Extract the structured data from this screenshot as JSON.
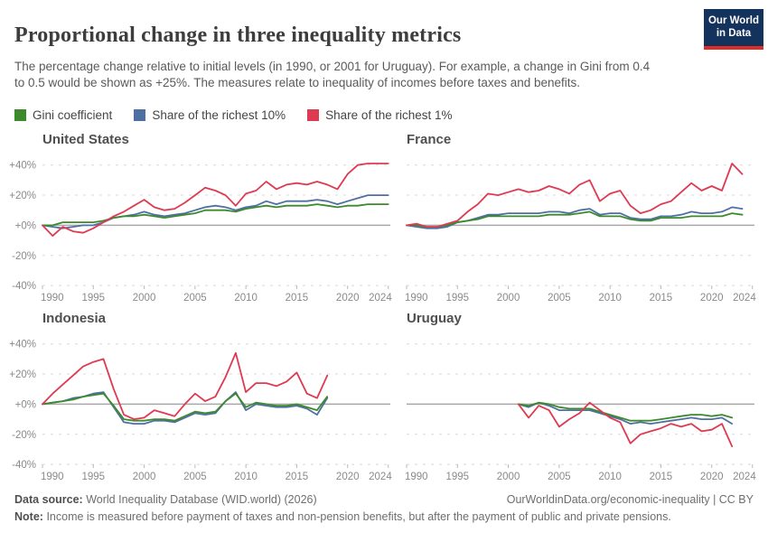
{
  "header": {
    "title": "Proportional change in three inequality metrics",
    "subtitle": "The percentage change relative to initial levels (in 1990, or 2001 for Uruguay). For example, a change in Gini from 0.4 to 0.5 would be shown as +25%. The measures relate to inequality of incomes before taxes and benefits.",
    "logo": {
      "line1": "Our World",
      "line2": "in Data",
      "bg_color": "#13325c",
      "bar_color": "#de2d26"
    }
  },
  "legend": [
    {
      "label": "Gini coefficient",
      "color": "#3C8A2C"
    },
    {
      "label": "Share of the richest 10%",
      "color": "#4E6FA3"
    },
    {
      "label": "Share of the richest 1%",
      "color": "#DE3A52"
    }
  ],
  "axis": {
    "y_tick_labels": [
      "+40%",
      "+20%",
      "+0%",
      "-20%",
      "-40%"
    ],
    "y_tick_values": [
      40,
      20,
      0,
      -20,
      -40
    ],
    "x_tick_years": [
      1990,
      1995,
      2000,
      2005,
      2010,
      2015,
      2020,
      2024
    ],
    "x_range": [
      1990,
      2024
    ],
    "y_range": [
      -40,
      40
    ],
    "grid": "dashed horizontal gridlines, solid zero line"
  },
  "chart_data": [
    {
      "type": "line",
      "title": "United States",
      "start_year": 1990,
      "end_year": 2024,
      "series": [
        {
          "name": "Gini coefficient",
          "values": [
            0,
            0,
            2,
            2,
            2,
            2,
            3,
            5,
            6,
            6,
            7,
            6,
            5,
            6,
            7,
            8,
            10,
            10,
            10,
            9,
            11,
            12,
            13,
            12,
            13,
            13,
            13,
            14,
            13,
            12,
            13,
            13,
            14,
            14,
            14
          ]
        },
        {
          "name": "Share of the richest 10%",
          "values": [
            0,
            -1,
            -2,
            -1,
            0,
            0,
            2,
            5,
            6,
            7,
            9,
            7,
            6,
            7,
            8,
            10,
            12,
            13,
            12,
            10,
            12,
            13,
            16,
            14,
            16,
            16,
            16,
            17,
            16,
            14,
            16,
            18,
            20,
            20,
            20
          ]
        },
        {
          "name": "Share of the richest 1%",
          "values": [
            0,
            -7,
            -1,
            -4,
            -5,
            -2,
            2,
            6,
            9,
            13,
            17,
            12,
            10,
            11,
            15,
            20,
            25,
            23,
            20,
            13,
            21,
            23,
            29,
            24,
            27,
            28,
            27,
            29,
            27,
            24,
            34,
            40,
            41,
            41,
            41
          ]
        }
      ]
    },
    {
      "type": "line",
      "title": "France",
      "start_year": 1990,
      "end_year": 2023,
      "series": [
        {
          "name": "Gini coefficient",
          "values": [
            0,
            0,
            -1,
            -1,
            0,
            2,
            3,
            4,
            6,
            6,
            6,
            6,
            6,
            6,
            7,
            7,
            7,
            8,
            9,
            6,
            6,
            6,
            4,
            3,
            3,
            5,
            5,
            5,
            6,
            6,
            6,
            6,
            8,
            7
          ]
        },
        {
          "name": "Share of the richest 10%",
          "values": [
            0,
            -1,
            -2,
            -2,
            -1,
            2,
            3,
            5,
            7,
            7,
            8,
            8,
            8,
            8,
            9,
            9,
            8,
            10,
            11,
            7,
            8,
            8,
            5,
            4,
            4,
            6,
            6,
            7,
            9,
            8,
            8,
            9,
            12,
            11
          ]
        },
        {
          "name": "Share of the richest 1%",
          "values": [
            0,
            1,
            -1,
            -1,
            1,
            3,
            9,
            14,
            21,
            20,
            22,
            24,
            22,
            23,
            26,
            24,
            21,
            27,
            30,
            16,
            21,
            23,
            13,
            8,
            10,
            14,
            16,
            22,
            28,
            23,
            26,
            23,
            41,
            34
          ]
        }
      ]
    },
    {
      "type": "line",
      "title": "Indonesia",
      "start_year": 1990,
      "end_year": 2018,
      "series": [
        {
          "name": "Gini coefficient",
          "values": [
            0,
            1,
            2,
            3,
            5,
            6,
            7,
            -1,
            -10,
            -11,
            -11,
            -10,
            -10,
            -11,
            -8,
            -5,
            -6,
            -5,
            2,
            7,
            -2,
            1,
            0,
            -1,
            -1,
            0,
            -2,
            -4,
            5
          ]
        },
        {
          "name": "Share of the richest 10%",
          "values": [
            0,
            1,
            2,
            4,
            5,
            7,
            8,
            -2,
            -12,
            -13,
            -13,
            -11,
            -11,
            -12,
            -9,
            -6,
            -7,
            -6,
            2,
            8,
            -4,
            0,
            -1,
            -2,
            -2,
            -1,
            -3,
            -7,
            4
          ]
        },
        {
          "name": "Share of the richest 1%",
          "values": [
            0,
            7,
            13,
            19,
            25,
            28,
            30,
            10,
            -7,
            -10,
            -9,
            -4,
            -6,
            -8,
            0,
            7,
            2,
            5,
            18,
            34,
            8,
            14,
            14,
            12,
            15,
            21,
            7,
            4,
            19
          ]
        }
      ]
    },
    {
      "type": "line",
      "title": "Uruguay",
      "start_year": 2001,
      "end_year": 2022,
      "series": [
        {
          "name": "Gini coefficient",
          "values": [
            0,
            -1,
            1,
            0,
            -2,
            -3,
            -3,
            -3,
            -5,
            -7,
            -9,
            -11,
            -11,
            -11,
            -10,
            -9,
            -8,
            -7,
            -7,
            -8,
            -7,
            -9
          ]
        },
        {
          "name": "Share of the richest 10%",
          "values": [
            0,
            -2,
            1,
            -1,
            -4,
            -4,
            -4,
            -4,
            -6,
            -8,
            -10,
            -13,
            -12,
            -13,
            -12,
            -11,
            -10,
            -9,
            -10,
            -10,
            -9,
            -13
          ]
        },
        {
          "name": "Share of the richest 1%",
          "values": [
            0,
            -9,
            -1,
            -4,
            -15,
            -10,
            -6,
            1,
            -4,
            -9,
            -12,
            -26,
            -20,
            -18,
            -16,
            -13,
            -15,
            -13,
            -18,
            -17,
            -13,
            -28
          ]
        }
      ]
    }
  ],
  "footer": {
    "source_label": "Data source:",
    "source_value": "World Inequality Database (WID.world) (2026)",
    "link": "OurWorldinData.org/economic-inequality | CC BY",
    "note_label": "Note:",
    "note_value": "Income is measured before payment of taxes and non-pension benefits, but after the payment of public and private pensions."
  }
}
